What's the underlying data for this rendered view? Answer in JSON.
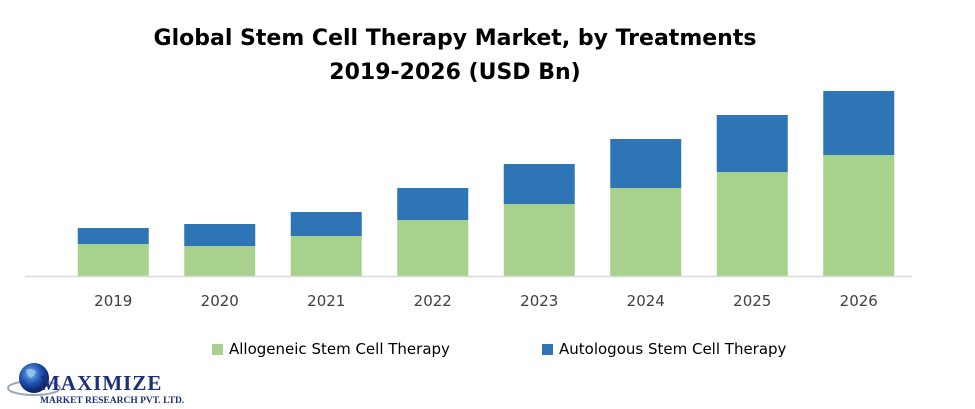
{
  "chart_data": {
    "type": "bar",
    "stacked": true,
    "title": "Global Stem Cell Therapy Market, by Treatments",
    "subtitle": "2019-2026 (USD Bn)",
    "xlabel": "",
    "ylabel": "",
    "categories": [
      "2019",
      "2020",
      "2021",
      "2022",
      "2023",
      "2024",
      "2025",
      "2026"
    ],
    "series": [
      {
        "name": "Allogeneic Stem Cell Therapy",
        "color": "#a9d18e",
        "values": [
          32,
          30,
          40,
          56,
          72,
          88,
          104,
          121
        ]
      },
      {
        "name": "Autologous Stem Cell Therapy",
        "color": "#2e75b6",
        "values": [
          16,
          22,
          24,
          32,
          40,
          49,
          57,
          64
        ]
      }
    ],
    "ylim": [
      0,
      190
    ],
    "y_axis_shown": false,
    "grid": false,
    "legend": "bottom"
  },
  "logo": {
    "name": "MAXIMIZE",
    "tagline": "MARKET RESEARCH PVT. LTD."
  }
}
